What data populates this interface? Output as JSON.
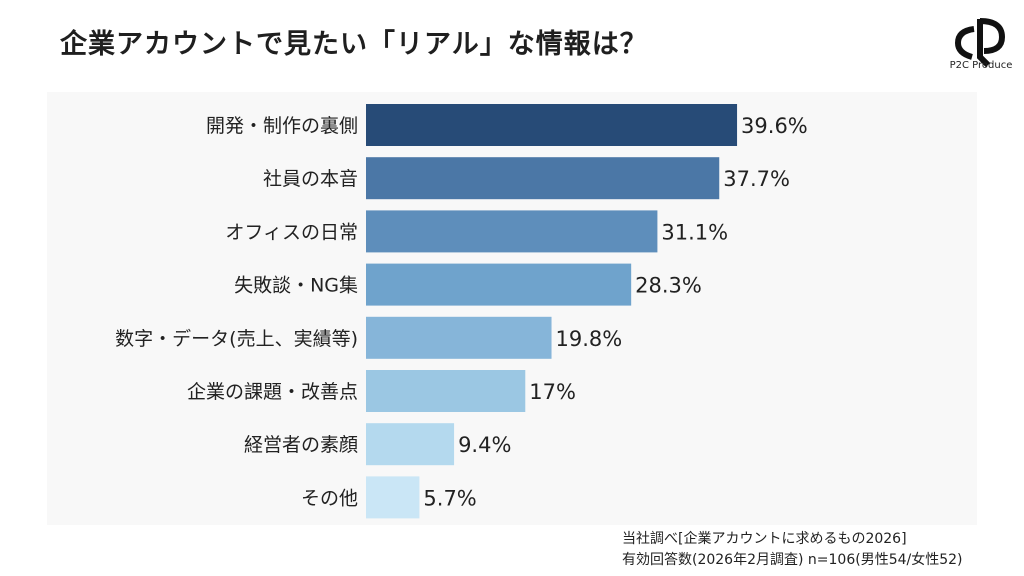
{
  "chart_data": {
    "type": "bar",
    "orientation": "horizontal",
    "title": "企業アカウントで見たい「リアル」な情報は？",
    "categories": [
      "開発・制作の裏側",
      "社員の本音",
      "オフィスの日常",
      "失敗談・NG集",
      "数字・データ(売上、実績等)",
      "企業の課題・改善点",
      "経営者の素顔",
      "その他"
    ],
    "values": [
      39.6,
      37.7,
      31.1,
      28.3,
      19.8,
      17,
      9.4,
      5.7
    ],
    "value_labels": [
      "39.6%",
      "37.7%",
      "31.1%",
      "28.3%",
      "19.8%",
      "17%",
      "9.4%",
      "5.7%"
    ],
    "colors": [
      "#274b77",
      "#4b77a6",
      "#5e8ebb",
      "#6fa3cc",
      "#86b5d9",
      "#9bc7e3",
      "#b4d9ee",
      "#cae6f6"
    ],
    "xlabel": "",
    "ylabel": "",
    "xlim": [
      0,
      100
    ],
    "grid": false,
    "legend": "none"
  },
  "logo": {
    "text": "P2C Produce"
  },
  "footer": {
    "source": "当社調べ[企業アカウントに求めるもの2026]",
    "sample": "有効回答数(2026年2月調査) n=106(男性54/女性52)"
  }
}
